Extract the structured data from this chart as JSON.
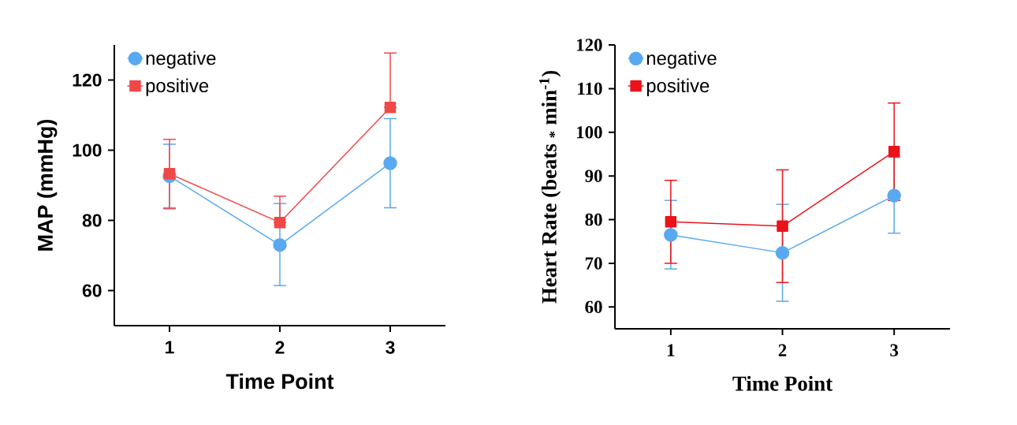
{
  "chart_data": [
    {
      "type": "line",
      "xlabel": "Time Point",
      "ylabel": "MAP (mmHg)",
      "categories": [
        "1",
        "2",
        "3"
      ],
      "ylim": [
        50,
        130
      ],
      "yticks": [
        60,
        80,
        100,
        120
      ],
      "grid": false,
      "legend": "top left",
      "line_style": "solid",
      "series": [
        {
          "name": "negative",
          "color": "#5aa9f0",
          "marker": "circle",
          "values": [
            92.6,
            73.0,
            96.3
          ],
          "errors": [
            [
              83.6,
              101.7
            ],
            [
              61.4,
              84.8
            ],
            [
              83.6,
              109.0
            ]
          ]
        },
        {
          "name": "positive",
          "color": "#f04848",
          "marker": "square",
          "values": [
            93.3,
            79.4,
            112.2
          ],
          "errors": [
            [
              83.3,
              103.1
            ],
            [
              79.4,
              86.9
            ],
            [
              112.2,
              127.7
            ]
          ]
        }
      ]
    },
    {
      "type": "line",
      "xlabel": "Time Point",
      "ylabel": "Heart Rate (beats $_{*}$ min$^{-1}$)",
      "categories": [
        "1",
        "2",
        "3"
      ],
      "ylim": [
        55,
        120
      ],
      "yticks": [
        60,
        70,
        80,
        90,
        100,
        110,
        120
      ],
      "grid": false,
      "legend": "top left",
      "line_style": "solid",
      "series": [
        {
          "name": "negative",
          "color": "#5aa9f0",
          "marker": "circle",
          "values": [
            76.5,
            72.4,
            85.5
          ],
          "errors": [
            [
              68.7,
              84.4
            ],
            [
              61.3,
              83.5
            ],
            [
              76.9,
              94.3
            ]
          ]
        },
        {
          "name": "positive",
          "color": "#e8141a",
          "marker": "square",
          "values": [
            79.5,
            78.5,
            95.6
          ],
          "errors": [
            [
              70.0,
              89.0
            ],
            [
              65.6,
              91.4
            ],
            [
              84.4,
              106.7
            ]
          ]
        }
      ]
    }
  ]
}
